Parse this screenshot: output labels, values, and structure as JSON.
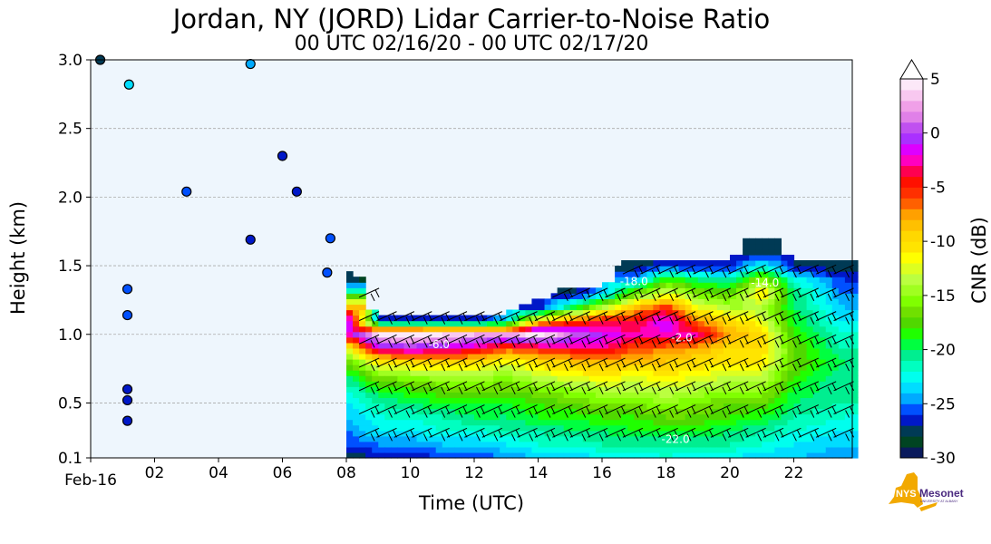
{
  "chart_data": {
    "type": "heatmap",
    "title": "Jordan, NY (JORD) Lidar Carrier-to-Noise Ratio",
    "subtitle": "00 UTC 02/16/20 - 00 UTC 02/17/20",
    "xlabel": "Time (UTC)",
    "ylabel": "Height (km)",
    "xlim": [
      0,
      23.83
    ],
    "ylim": [
      0.1,
      3.0
    ],
    "x_ticks": [
      {
        "value": 0,
        "label": "Feb-16"
      },
      {
        "value": 2,
        "label": "02"
      },
      {
        "value": 4,
        "label": "04"
      },
      {
        "value": 6,
        "label": "06"
      },
      {
        "value": 8,
        "label": "08"
      },
      {
        "value": 10,
        "label": "10"
      },
      {
        "value": 12,
        "label": "12"
      },
      {
        "value": 14,
        "label": "14"
      },
      {
        "value": 16,
        "label": "16"
      },
      {
        "value": 18,
        "label": "18"
      },
      {
        "value": 20,
        "label": "20"
      },
      {
        "value": 22,
        "label": "22"
      }
    ],
    "y_ticks": [
      {
        "value": 0.1,
        "label": "0.1"
      },
      {
        "value": 0.5,
        "label": "0.5"
      },
      {
        "value": 1.0,
        "label": "1.0"
      },
      {
        "value": 1.5,
        "label": "1.5"
      },
      {
        "value": 2.0,
        "label": "2.0"
      },
      {
        "value": 2.5,
        "label": "2.5"
      },
      {
        "value": 3.0,
        "label": "3.0"
      }
    ],
    "grid": "horizontal dashed",
    "grid_times": [
      8,
      9,
      10,
      11,
      12,
      13,
      14,
      15,
      16,
      17,
      18,
      19,
      20,
      21,
      22,
      23.5
    ],
    "grid_heights": [
      0.1,
      0.2,
      0.3,
      0.4,
      0.5,
      0.6,
      0.7,
      0.8,
      0.9,
      1.0,
      1.1,
      1.2,
      1.3,
      1.4,
      1.5,
      1.6
    ],
    "cnr_db_by_time": [
      [
        -28,
        -26,
        -25,
        -24,
        -23,
        -22,
        -20,
        -17,
        -12,
        -3,
        2,
        -8,
        -20,
        -28,
        null,
        null
      ],
      [
        -27,
        -25,
        -23,
        -22,
        -21,
        -19,
        -16,
        -11,
        -2,
        4,
        -26,
        null,
        null,
        null,
        null,
        null
      ],
      [
        -27,
        -25,
        -23,
        -22,
        -20,
        -18,
        -15,
        -10,
        -1,
        5,
        -27,
        null,
        null,
        null,
        null,
        null
      ],
      [
        -26,
        -24,
        -22,
        -21,
        -19,
        -17,
        -14,
        -9,
        -2,
        4,
        -27,
        null,
        null,
        null,
        null,
        null
      ],
      [
        -26,
        -24,
        -22,
        -20,
        -19,
        -17,
        -14,
        -10,
        -3,
        3,
        -27,
        null,
        null,
        null,
        null,
        null
      ],
      [
        -25,
        -23,
        -21,
        -20,
        -19,
        -17,
        -15,
        -12,
        -6,
        2,
        -24,
        null,
        null,
        null,
        null,
        null
      ],
      [
        -24,
        -22,
        -21,
        -19,
        -18,
        -16,
        -13,
        -10,
        -5,
        5,
        -10,
        -27,
        null,
        null,
        null,
        null
      ],
      [
        -24,
        -22,
        -20,
        -19,
        -17,
        -15,
        -12,
        -9,
        -4,
        1,
        -6,
        -20,
        -28,
        null,
        null,
        null
      ],
      [
        -23,
        -21,
        -20,
        -18,
        -16,
        -14,
        -11,
        -8,
        -3,
        -1,
        -4,
        -14,
        -24,
        null,
        null,
        null
      ],
      [
        -23,
        -21,
        -19,
        -18,
        -16,
        -14,
        -12,
        -9,
        -6,
        -3,
        -4,
        -9,
        -17,
        -24,
        -28,
        null
      ],
      [
        -22,
        -21,
        -19,
        -17,
        -15,
        -13,
        -11,
        -9,
        -7,
        -2,
        -1,
        -5,
        -12,
        -18,
        -26,
        null
      ],
      [
        -23,
        -21,
        -19,
        -17,
        -16,
        -14,
        -12,
        -10,
        -8,
        -3,
        -7,
        -12,
        -16,
        -20,
        -27,
        null
      ],
      [
        -23,
        -21,
        -20,
        -18,
        -17,
        -15,
        -13,
        -11,
        -10,
        -8,
        -10,
        -14,
        -17,
        -21,
        -27,
        null
      ],
      [
        -24,
        -22,
        -21,
        -19,
        -17,
        -15,
        -13,
        -11,
        -10,
        -10,
        -12,
        -14,
        -10,
        -15,
        -22,
        -28
      ],
      [
        -24,
        -23,
        -22,
        -21,
        -20,
        -19,
        -18,
        -17,
        -17,
        -18,
        -19,
        -20,
        -20,
        -22,
        -27,
        null
      ],
      [
        -25,
        -24,
        -23,
        -22,
        -21,
        -21,
        -21,
        -20,
        -21,
        -22,
        -23,
        -24,
        -25,
        -26,
        -28,
        null
      ]
    ],
    "isolated_echoes": [
      {
        "time": 0.3,
        "height": 3.0,
        "cnr_db": -28
      },
      {
        "time": 1.2,
        "height": 2.82,
        "cnr_db": -24
      },
      {
        "time": 3.0,
        "height": 2.04,
        "cnr_db": -26
      },
      {
        "time": 5.0,
        "height": 2.97,
        "cnr_db": -25
      },
      {
        "time": 6.0,
        "height": 2.3,
        "cnr_db": -27
      },
      {
        "time": 6.45,
        "height": 2.04,
        "cnr_db": -27
      },
      {
        "time": 5.0,
        "height": 1.69,
        "cnr_db": -27
      },
      {
        "time": 7.5,
        "height": 1.7,
        "cnr_db": -26
      },
      {
        "time": 7.4,
        "height": 1.45,
        "cnr_db": -26
      },
      {
        "time": 1.15,
        "height": 1.33,
        "cnr_db": -26
      },
      {
        "time": 1.15,
        "height": 1.14,
        "cnr_db": -26
      },
      {
        "time": 1.15,
        "height": 0.6,
        "cnr_db": -27
      },
      {
        "time": 1.15,
        "height": 0.52,
        "cnr_db": -27
      },
      {
        "time": 1.15,
        "height": 0.37,
        "cnr_db": -27
      }
    ],
    "contour_labels": [
      {
        "time": 18.3,
        "height": 0.21,
        "label": "-22.0"
      },
      {
        "time": 17.0,
        "height": 1.36,
        "label": "-18.0"
      },
      {
        "time": 21.1,
        "height": 1.35,
        "label": "-14.0"
      },
      {
        "time": 10.9,
        "height": 0.9,
        "label": "-6.0"
      },
      {
        "time": 18.5,
        "height": 0.95,
        "label": "-2.0"
      }
    ],
    "colorbar": {
      "label": "CNR (dB)",
      "min": -30,
      "max": 5,
      "step": 1,
      "extend": "max",
      "ticks": [
        {
          "value": 5,
          "label": "5"
        },
        {
          "value": 0,
          "label": "0"
        },
        {
          "value": -5,
          "label": "-5"
        },
        {
          "value": -10,
          "label": "-10"
        },
        {
          "value": -15,
          "label": "-15"
        },
        {
          "value": -20,
          "label": "-20"
        },
        {
          "value": -25,
          "label": "-25"
        },
        {
          "value": -30,
          "label": "-30"
        }
      ],
      "colors": [
        "#0a1a5c",
        "#004422",
        "#003a55",
        "#0018c8",
        "#0050ff",
        "#00aaff",
        "#00ddff",
        "#00ffee",
        "#00ffc0",
        "#00ee90",
        "#00ff40",
        "#20ff00",
        "#50d800",
        "#70e000",
        "#80ff00",
        "#a0ff20",
        "#bbff40",
        "#ddff20",
        "#ffff00",
        "#ffe400",
        "#ffd800",
        "#ffc000",
        "#ffa000",
        "#ff6000",
        "#ff3000",
        "#ff1000",
        "#ff0050",
        "#ff00c0",
        "#dd00ff",
        "#aa30ff",
        "#c050f0",
        "#e080e8",
        "#f0a0e8",
        "#f8c8f0",
        "#fce8f8"
      ],
      "extend_color": "#ffffff"
    },
    "background_color": "#eef6fd"
  },
  "logo": {
    "primary": "NYS",
    "secondary": "Mesonet",
    "tagline": "UNIVERSITY AT ALBANY"
  }
}
